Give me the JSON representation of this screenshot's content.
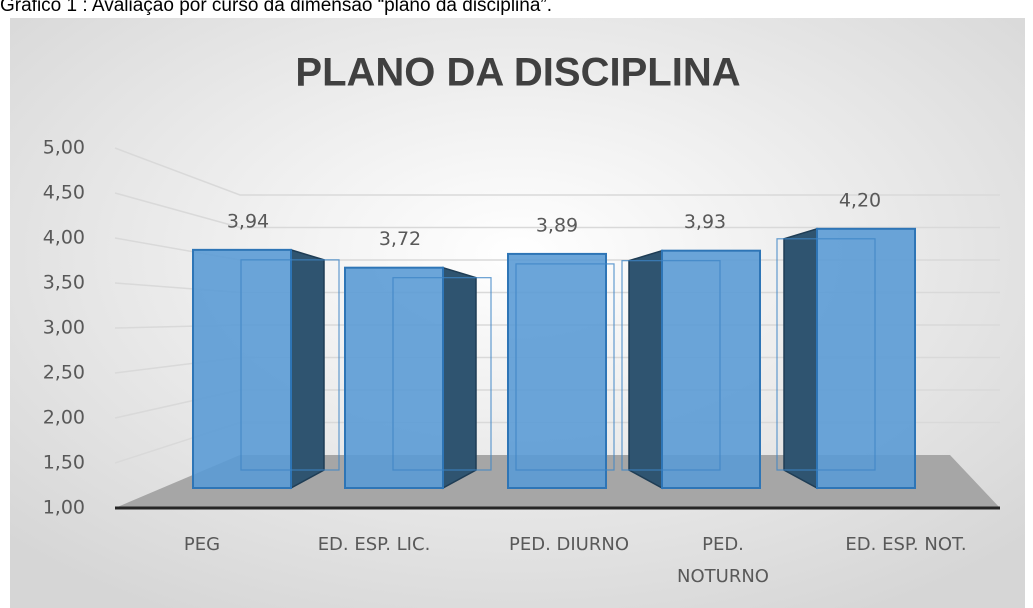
{
  "caption": "Gráfico 1 : Avaliação por curso da dimensão “plano da disciplina”.",
  "chart_data": {
    "type": "bar3d",
    "title": "PLANO DA DISCIPLINA",
    "categories": [
      "PEG",
      "ED. ESP. LIC.",
      "PED. DIURNO",
      "PED. NOTURNO",
      "ED. ESP. NOT."
    ],
    "values": [
      3.94,
      3.72,
      3.89,
      3.93,
      4.2
    ],
    "value_labels": [
      "3,94",
      "3,72",
      "3,89",
      "3,93",
      "4,20"
    ],
    "color": "#5b9bd5",
    "ylim": [
      1,
      5
    ],
    "yticks": [
      {
        "value": 1,
        "label": "1,00"
      },
      {
        "value": 1.5,
        "label": "1,50"
      },
      {
        "value": 2,
        "label": "2,00"
      },
      {
        "value": 2.5,
        "label": "2,50"
      },
      {
        "value": 3,
        "label": "3,00"
      },
      {
        "value": 3.5,
        "label": "3,50"
      },
      {
        "value": 4,
        "label": "4,00"
      },
      {
        "value": 4.5,
        "label": "4,50"
      },
      {
        "value": 5,
        "label": "5,00"
      }
    ],
    "grid": true
  }
}
